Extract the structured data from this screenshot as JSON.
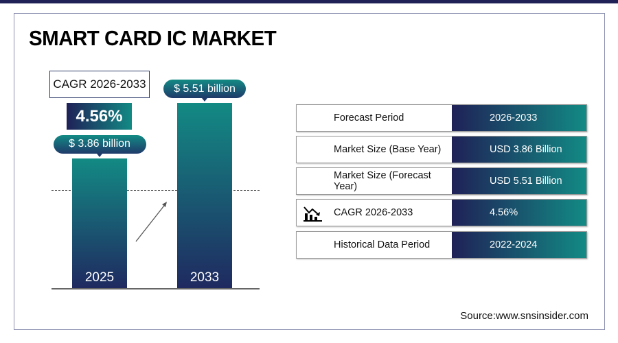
{
  "title": "SMART CARD IC MARKET",
  "cagr": {
    "label": "CAGR 2026-2033",
    "value": "4.56%"
  },
  "chart_data": {
    "type": "bar",
    "categories": [
      "2025",
      "2033"
    ],
    "values": [
      3.86,
      5.51
    ],
    "data_labels": [
      "$ 3.86 billion",
      "$ 5.51 billion"
    ],
    "unit": "USD billion",
    "colors": [
      "#1f2157",
      "#128a84"
    ]
  },
  "table": [
    {
      "label": "Forecast Period",
      "value": "2026-2033"
    },
    {
      "label": "Market Size (Base Year)",
      "value": "USD 3.86 Billion"
    },
    {
      "label": "Market Size (Forecast Year)",
      "value": "USD 5.51 Billion"
    },
    {
      "label": "CAGR 2026-2033",
      "value": "4.56%",
      "icon": "chart-decline-icon"
    },
    {
      "label": "Historical Data Period",
      "value": "2022-2024"
    }
  ],
  "source": "Source:www.snsinsider.com"
}
